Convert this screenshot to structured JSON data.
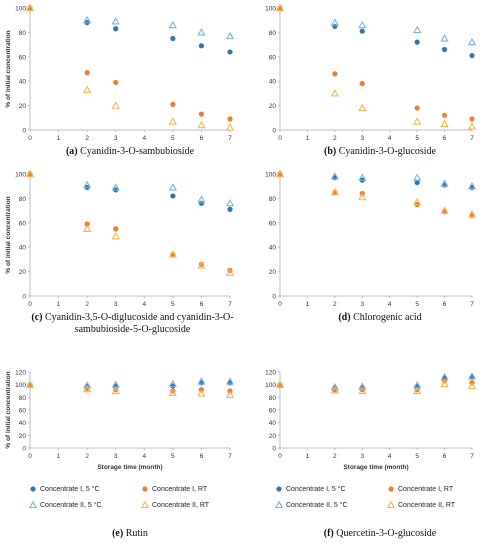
{
  "colors": {
    "c1_5c": "#2e75b6",
    "c1_rt": "#ed7d31",
    "c2_5c": "#7db2dd",
    "c2_rt": "#f5b64e",
    "axis": "#bfbfbf"
  },
  "legend": {
    "items": [
      {
        "label": "Concentrate I, 5 °C",
        "marker": "circle",
        "color": "#2e75b6"
      },
      {
        "label": "Concentrate I, RT",
        "marker": "circle",
        "color": "#ed7d31"
      },
      {
        "label": "Concentrate II, 5 °C",
        "marker": "triangle",
        "color": "#7db2dd"
      },
      {
        "label": "Concentrate II, RT",
        "marker": "triangle",
        "color": "#f5b64e"
      }
    ]
  },
  "chart_data": [
    {
      "type": "scatter",
      "panel": "a",
      "caption_tag": "(a)",
      "caption_text": "Cyanidin-3-O-sambubioside",
      "ylabel": "% of initial concentration",
      "xlabel": "",
      "xlim": [
        0,
        7
      ],
      "ylim": [
        0,
        100
      ],
      "xticks": [
        0,
        1,
        2,
        3,
        4,
        5,
        6,
        7
      ],
      "yticks": [
        0,
        20,
        40,
        60,
        80,
        100
      ],
      "series": [
        {
          "name": "Concentrate I, 5 °C",
          "x": [
            0,
            2,
            3,
            5,
            6,
            7
          ],
          "y": [
            100,
            88,
            83,
            75,
            69,
            64
          ]
        },
        {
          "name": "Concentrate I, RT",
          "x": [
            0,
            2,
            3,
            5,
            6,
            7
          ],
          "y": [
            100,
            47,
            39,
            21,
            13,
            9
          ]
        },
        {
          "name": "Concentrate II, 5 °C",
          "x": [
            0,
            2,
            3,
            5,
            6,
            7
          ],
          "y": [
            100,
            90,
            89,
            86,
            80,
            77
          ]
        },
        {
          "name": "Concentrate II, RT",
          "x": [
            0,
            2,
            3,
            5,
            6,
            7
          ],
          "y": [
            100,
            33,
            20,
            7,
            4,
            2
          ]
        }
      ]
    },
    {
      "type": "scatter",
      "panel": "b",
      "caption_tag": "(b)",
      "caption_text": "Cyanidin-3-O-glucoside",
      "ylabel": "",
      "xlabel": "",
      "xlim": [
        0,
        7
      ],
      "ylim": [
        0,
        100
      ],
      "xticks": [
        0,
        1,
        2,
        3,
        4,
        5,
        6,
        7
      ],
      "yticks": [
        0,
        20,
        40,
        60,
        80,
        100
      ],
      "series": [
        {
          "name": "Concentrate I, 5 °C",
          "x": [
            0,
            2,
            3,
            5,
            6,
            7
          ],
          "y": [
            100,
            85,
            81,
            72,
            66,
            61
          ]
        },
        {
          "name": "Concentrate I, RT",
          "x": [
            0,
            2,
            3,
            5,
            6,
            7
          ],
          "y": [
            100,
            46,
            38,
            18,
            12,
            9
          ]
        },
        {
          "name": "Concentrate II, 5 °C",
          "x": [
            0,
            2,
            3,
            5,
            6,
            7
          ],
          "y": [
            100,
            88,
            86,
            82,
            75,
            72
          ]
        },
        {
          "name": "Concentrate II, RT",
          "x": [
            0,
            2,
            3,
            5,
            6,
            7
          ],
          "y": [
            100,
            30,
            18,
            7,
            5,
            3
          ]
        }
      ]
    },
    {
      "type": "scatter",
      "panel": "c",
      "caption_tag": "(c)",
      "caption_text": "Cyanidin-3,5-O-diglucoside and cyanidin-3-O-sambubioside-5-O-glucoside",
      "ylabel": "% of initial concentration",
      "xlabel": "",
      "xlim": [
        0,
        7
      ],
      "ylim": [
        0,
        100
      ],
      "xticks": [
        0,
        1,
        2,
        3,
        4,
        5,
        6,
        7
      ],
      "yticks": [
        0,
        20,
        40,
        60,
        80,
        100
      ],
      "series": [
        {
          "name": "Concentrate I, 5 °C",
          "x": [
            0,
            2,
            3,
            5,
            6,
            7
          ],
          "y": [
            100,
            89,
            87,
            82,
            76,
            71
          ]
        },
        {
          "name": "Concentrate I, RT",
          "x": [
            0,
            2,
            3,
            5,
            6,
            7
          ],
          "y": [
            100,
            59,
            55,
            34,
            26,
            21
          ]
        },
        {
          "name": "Concentrate II, 5 °C",
          "x": [
            0,
            2,
            3,
            5,
            6,
            7
          ],
          "y": [
            100,
            91,
            89,
            89,
            79,
            76
          ]
        },
        {
          "name": "Concentrate II, RT",
          "x": [
            0,
            2,
            3,
            5,
            6,
            7
          ],
          "y": [
            100,
            55,
            49,
            34,
            25,
            19
          ]
        }
      ]
    },
    {
      "type": "scatter",
      "panel": "d",
      "caption_tag": "(d)",
      "caption_text": "Chlorogenic acid",
      "ylabel": "",
      "xlabel": "",
      "xlim": [
        0,
        7
      ],
      "ylim": [
        0,
        100
      ],
      "xticks": [
        0,
        1,
        2,
        3,
        4,
        5,
        6,
        7
      ],
      "yticks": [
        0,
        20,
        40,
        60,
        80,
        100
      ],
      "series": [
        {
          "name": "Concentrate I, 5 °C",
          "x": [
            0,
            2,
            3,
            5,
            6,
            7
          ],
          "y": [
            100,
            97,
            95,
            93,
            91,
            89
          ]
        },
        {
          "name": "Concentrate I, RT",
          "x": [
            0,
            2,
            3,
            5,
            6,
            7
          ],
          "y": [
            100,
            85,
            84,
            75,
            69,
            66
          ]
        },
        {
          "name": "Concentrate II, 5 °C",
          "x": [
            0,
            2,
            3,
            5,
            6,
            7
          ],
          "y": [
            100,
            98,
            97,
            97,
            92,
            90
          ]
        },
        {
          "name": "Concentrate II, RT",
          "x": [
            0,
            2,
            3,
            5,
            6,
            7
          ],
          "y": [
            100,
            85,
            81,
            77,
            70,
            67
          ]
        }
      ]
    },
    {
      "type": "scatter",
      "panel": "e",
      "caption_tag": "(e)",
      "caption_text": "Rutin",
      "ylabel": "% of initial concentration",
      "xlabel": "Storage time (month)",
      "xlim": [
        0,
        7
      ],
      "ylim": [
        0,
        120
      ],
      "xticks": [
        0,
        1,
        2,
        3,
        4,
        5,
        6,
        7
      ],
      "yticks": [
        0,
        20,
        40,
        60,
        80,
        100,
        120
      ],
      "series": [
        {
          "name": "Concentrate I, 5 °C",
          "x": [
            0,
            2,
            3,
            5,
            6,
            7
          ],
          "y": [
            100,
            97,
            98,
            98,
            103,
            103
          ]
        },
        {
          "name": "Concentrate I, RT",
          "x": [
            0,
            2,
            3,
            5,
            6,
            7
          ],
          "y": [
            100,
            94,
            92,
            90,
            92,
            90
          ]
        },
        {
          "name": "Concentrate II, 5 °C",
          "x": [
            0,
            2,
            3,
            5,
            6,
            7
          ],
          "y": [
            100,
            99,
            100,
            101,
            105,
            105
          ]
        },
        {
          "name": "Concentrate II, RT",
          "x": [
            0,
            2,
            3,
            5,
            6,
            7
          ],
          "y": [
            100,
            93,
            90,
            87,
            86,
            84
          ]
        }
      ]
    },
    {
      "type": "scatter",
      "panel": "f",
      "caption_tag": "(f)",
      "caption_text": "Quercetin-3-O-glucoside",
      "ylabel": "",
      "xlabel": "Storage time (month)",
      "xlim": [
        0,
        7
      ],
      "ylim": [
        0,
        120
      ],
      "xticks": [
        0,
        1,
        2,
        3,
        4,
        5,
        6,
        7
      ],
      "yticks": [
        0,
        20,
        40,
        60,
        80,
        100,
        120
      ],
      "series": [
        {
          "name": "Concentrate I, 5 °C",
          "x": [
            0,
            2,
            3,
            5,
            6,
            7
          ],
          "y": [
            100,
            95,
            95,
            97,
            111,
            112
          ]
        },
        {
          "name": "Concentrate I, RT",
          "x": [
            0,
            2,
            3,
            5,
            6,
            7
          ],
          "y": [
            100,
            92,
            92,
            92,
            106,
            103
          ]
        },
        {
          "name": "Concentrate II, 5 °C",
          "x": [
            0,
            2,
            3,
            5,
            6,
            7
          ],
          "y": [
            100,
            96,
            97,
            99,
            112,
            113
          ]
        },
        {
          "name": "Concentrate II, RT",
          "x": [
            0,
            2,
            3,
            5,
            6,
            7
          ],
          "y": [
            100,
            91,
            90,
            90,
            101,
            98
          ]
        }
      ]
    }
  ]
}
